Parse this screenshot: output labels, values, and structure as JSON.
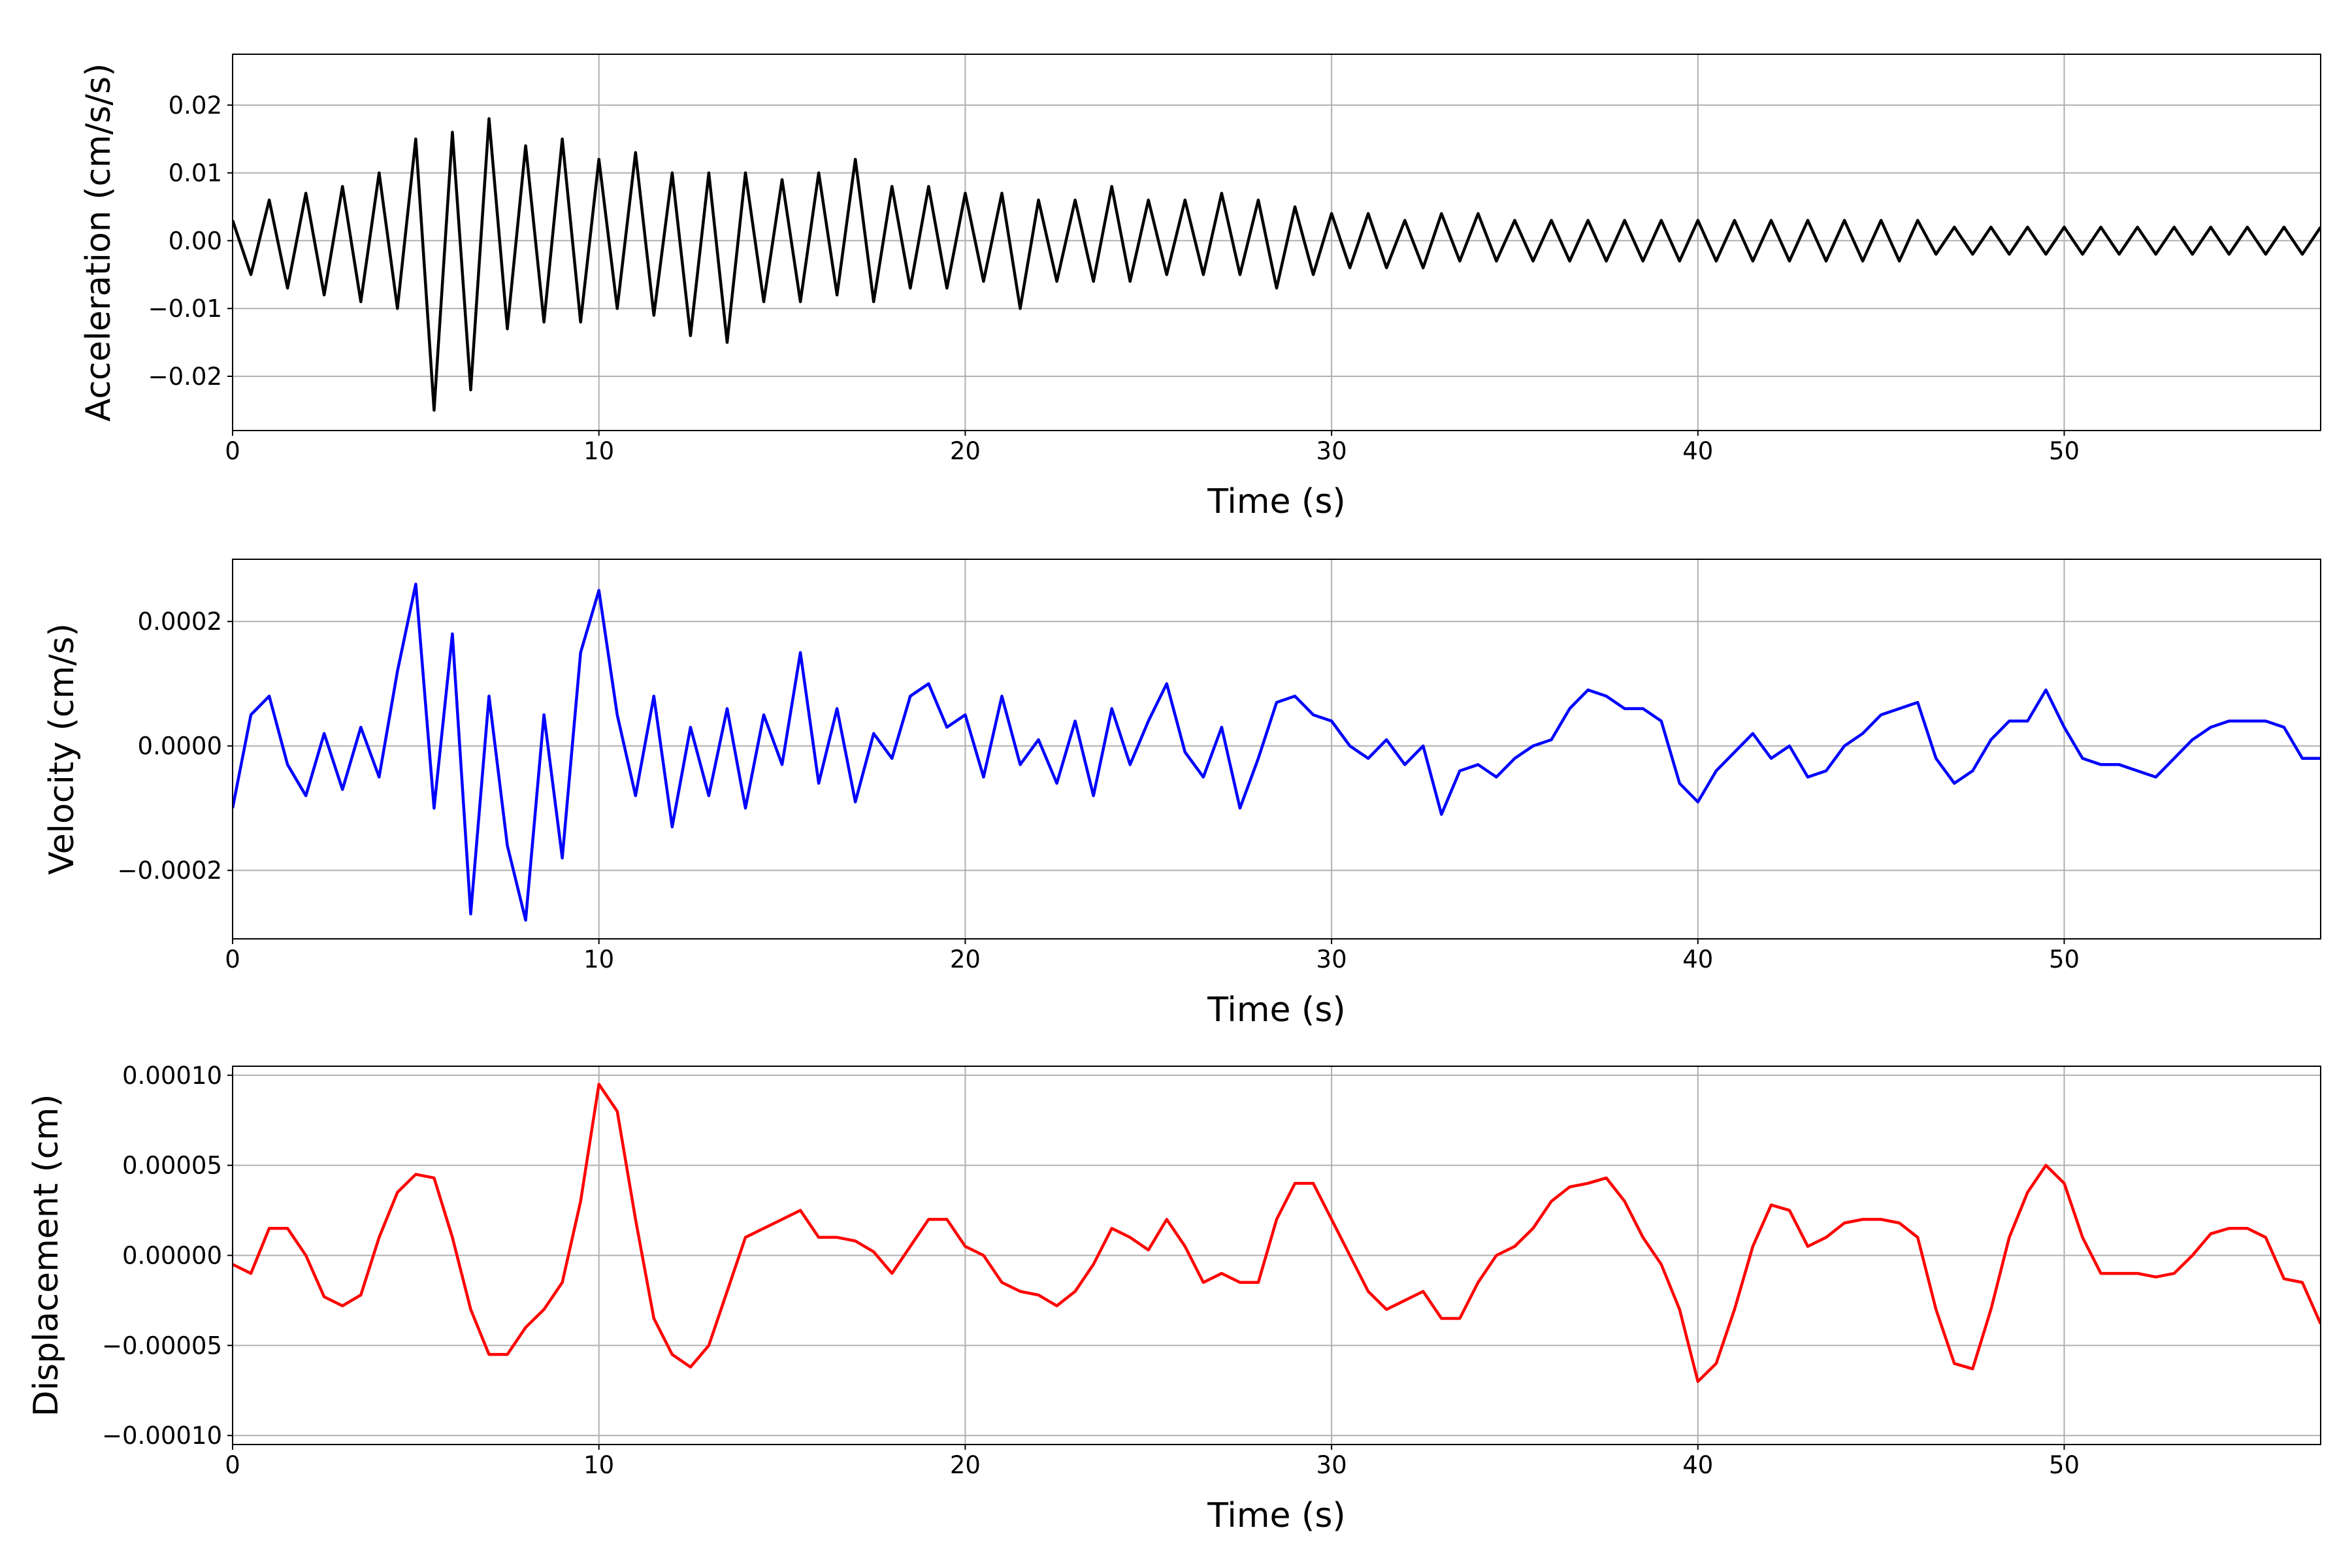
{
  "chart_data": [
    {
      "type": "line",
      "xlabel": "Time (s)",
      "ylabel": "Acceleration (cm/s/s)",
      "color": "#000000",
      "grid": true,
      "xlim": [
        0,
        57
      ],
      "xticks": [
        0,
        10,
        20,
        30,
        40,
        50
      ],
      "ylim": [
        -0.028,
        0.0275
      ],
      "yticks": [
        {
          "value": -0.02,
          "label": "−0.02"
        },
        {
          "value": -0.01,
          "label": "−0.01"
        },
        {
          "value": 0,
          "label": "0.00"
        },
        {
          "value": 0.01,
          "label": "0.01"
        },
        {
          "value": 0.02,
          "label": "0.02"
        }
      ],
      "x": [
        0,
        0.5,
        1,
        1.5,
        2,
        2.5,
        3,
        3.5,
        4,
        4.5,
        5,
        5.5,
        6,
        6.5,
        7,
        7.5,
        8,
        8.5,
        9,
        9.5,
        10,
        10.5,
        11,
        11.5,
        12,
        12.5,
        13,
        13.5,
        14,
        14.5,
        15,
        15.5,
        16,
        16.5,
        17,
        17.5,
        18,
        18.5,
        19,
        19.5,
        20,
        20.5,
        21,
        21.5,
        22,
        22.5,
        23,
        23.5,
        24,
        24.5,
        25,
        25.5,
        26,
        26.5,
        27,
        27.5,
        28,
        28.5,
        29,
        29.5,
        30,
        30.5,
        31,
        31.5,
        32,
        32.5,
        33,
        33.5,
        34,
        34.5,
        35,
        35.5,
        36,
        36.5,
        37,
        37.5,
        38,
        38.5,
        39,
        39.5,
        40,
        40.5,
        41,
        41.5,
        42,
        42.5,
        43,
        43.5,
        44,
        44.5,
        45,
        45.5,
        46,
        46.5,
        47,
        47.5,
        48,
        48.5,
        49,
        49.5,
        50,
        50.5,
        51,
        51.5,
        52,
        52.5,
        53,
        53.5,
        54,
        54.5,
        55,
        55.5,
        56,
        56.5,
        57
      ],
      "values": [
        0.003,
        -0.005,
        0.006,
        -0.007,
        0.007,
        -0.008,
        0.008,
        -0.009,
        0.01,
        -0.01,
        0.015,
        -0.025,
        0.016,
        -0.022,
        0.018,
        -0.013,
        0.014,
        -0.012,
        0.015,
        -0.012,
        0.012,
        -0.01,
        0.013,
        -0.011,
        0.01,
        -0.014,
        0.01,
        -0.015,
        0.01,
        -0.009,
        0.009,
        -0.009,
        0.01,
        -0.008,
        0.012,
        -0.009,
        0.008,
        -0.007,
        0.008,
        -0.007,
        0.007,
        -0.006,
        0.007,
        -0.01,
        0.006,
        -0.006,
        0.006,
        -0.006,
        0.008,
        -0.006,
        0.006,
        -0.005,
        0.006,
        -0.005,
        0.007,
        -0.005,
        0.006,
        -0.007,
        0.005,
        -0.005,
        0.004,
        -0.004,
        0.004,
        -0.004,
        0.003,
        -0.004,
        0.004,
        -0.003,
        0.004,
        -0.003,
        0.003,
        -0.003,
        0.003,
        -0.003,
        0.003,
        -0.003,
        0.003,
        -0.003,
        0.003,
        -0.003,
        0.003,
        -0.003,
        0.003,
        -0.003,
        0.003,
        -0.003,
        0.003,
        -0.003,
        0.003,
        -0.003,
        0.003,
        -0.003,
        0.003,
        -0.002,
        0.002,
        -0.002,
        0.002,
        -0.002,
        0.002,
        -0.002,
        0.002,
        -0.002,
        0.002,
        -0.002,
        0.002,
        -0.002,
        0.002,
        -0.002,
        0.002,
        -0.002,
        0.002,
        -0.002,
        0.002,
        -0.002,
        0.002
      ]
    },
    {
      "type": "line",
      "xlabel": "Time (s)",
      "ylabel": "Velocity (cm/s)",
      "color": "#0000ff",
      "grid": true,
      "xlim": [
        0,
        57
      ],
      "xticks": [
        0,
        10,
        20,
        30,
        40,
        50
      ],
      "ylim": [
        -0.00031,
        0.0003
      ],
      "yticks": [
        {
          "value": -0.0002,
          "label": "−0.0002"
        },
        {
          "value": 0,
          "label": "0.0000"
        },
        {
          "value": 0.0002,
          "label": "0.0002"
        }
      ],
      "x": [
        0,
        0.5,
        1,
        1.5,
        2,
        2.5,
        3,
        3.5,
        4,
        4.5,
        5,
        5.5,
        6,
        6.5,
        7,
        7.5,
        8,
        8.5,
        9,
        9.5,
        10,
        10.5,
        11,
        11.5,
        12,
        12.5,
        13,
        13.5,
        14,
        14.5,
        15,
        15.5,
        16,
        16.5,
        17,
        17.5,
        18,
        18.5,
        19,
        19.5,
        20,
        20.5,
        21,
        21.5,
        22,
        22.5,
        23,
        23.5,
        24,
        24.5,
        25,
        25.5,
        26,
        26.5,
        27,
        27.5,
        28,
        28.5,
        29,
        29.5,
        30,
        30.5,
        31,
        31.5,
        32,
        32.5,
        33,
        33.5,
        34,
        34.5,
        35,
        35.5,
        36,
        36.5,
        37,
        37.5,
        38,
        38.5,
        39,
        39.5,
        40,
        40.5,
        41,
        41.5,
        42,
        42.5,
        43,
        43.5,
        44,
        44.5,
        45,
        45.5,
        46,
        46.5,
        47,
        47.5,
        48,
        48.5,
        49,
        49.5,
        50,
        50.5,
        51,
        51.5,
        52,
        52.5,
        53,
        53.5,
        54,
        54.5,
        55,
        55.5,
        56,
        56.5,
        57
      ],
      "values": [
        -0.0001,
        5e-05,
        8e-05,
        -3e-05,
        -8e-05,
        2e-05,
        -7e-05,
        3e-05,
        -5e-05,
        0.00012,
        0.00026,
        -0.0001,
        0.00018,
        -0.00027,
        8e-05,
        -0.00016,
        -0.00028,
        5e-05,
        -0.00018,
        0.00015,
        0.00025,
        5e-05,
        -8e-05,
        8e-05,
        -0.00013,
        3e-05,
        -8e-05,
        6e-05,
        -0.0001,
        5e-05,
        -3e-05,
        0.00015,
        -6e-05,
        6e-05,
        -9e-05,
        2e-05,
        -2e-05,
        8e-05,
        0.0001,
        3e-05,
        5e-05,
        -5e-05,
        8e-05,
        -3e-05,
        1e-05,
        -6e-05,
        4e-05,
        -8e-05,
        6e-05,
        -3e-05,
        4e-05,
        0.0001,
        -1e-05,
        -5e-05,
        3e-05,
        -0.0001,
        -2e-05,
        7e-05,
        8e-05,
        5e-05,
        4e-05,
        0,
        -2e-05,
        1e-05,
        -3e-05,
        0,
        -0.00011,
        -4e-05,
        -3e-05,
        -5e-05,
        -2e-05,
        0,
        1e-05,
        6e-05,
        9e-05,
        8e-05,
        6e-05,
        6e-05,
        4e-05,
        -6e-05,
        -9e-05,
        -4e-05,
        -1e-05,
        2e-05,
        -2e-05,
        0,
        -5e-05,
        -4e-05,
        0,
        2e-05,
        5e-05,
        6e-05,
        7e-05,
        -2e-05,
        -6e-05,
        -4e-05,
        1e-05,
        4e-05,
        4e-05,
        9e-05,
        3e-05,
        -2e-05,
        -3e-05,
        -3e-05,
        -4e-05,
        -5e-05,
        -2e-05,
        1e-05,
        3e-05,
        4e-05,
        4e-05,
        4e-05,
        3e-05,
        -2e-05,
        -2e-05
      ]
    },
    {
      "type": "line",
      "xlabel": "Time (s)",
      "ylabel": "Displacement (cm)",
      "color": "#ff0000",
      "grid": true,
      "xlim": [
        0,
        57
      ],
      "xticks": [
        0,
        10,
        20,
        30,
        40,
        50
      ],
      "ylim": [
        -0.000105,
        0.000105
      ],
      "yticks": [
        {
          "value": -0.0001,
          "label": "−0.00010"
        },
        {
          "value": -5e-05,
          "label": "−0.00005"
        },
        {
          "value": 0,
          "label": "0.00000"
        },
        {
          "value": 5e-05,
          "label": "0.00005"
        },
        {
          "value": 0.0001,
          "label": "0.00010"
        }
      ],
      "x": [
        0,
        0.5,
        1,
        1.5,
        2,
        2.5,
        3,
        3.5,
        4,
        4.5,
        5,
        5.5,
        6,
        6.5,
        7,
        7.5,
        8,
        8.5,
        9,
        9.5,
        10,
        10.5,
        11,
        11.5,
        12,
        12.5,
        13,
        13.5,
        14,
        14.5,
        15,
        15.5,
        16,
        16.5,
        17,
        17.5,
        18,
        18.5,
        19,
        19.5,
        20,
        20.5,
        21,
        21.5,
        22,
        22.5,
        23,
        23.5,
        24,
        24.5,
        25,
        25.5,
        26,
        26.5,
        27,
        27.5,
        28,
        28.5,
        29,
        29.5,
        30,
        30.5,
        31,
        31.5,
        32,
        32.5,
        33,
        33.5,
        34,
        34.5,
        35,
        35.5,
        36,
        36.5,
        37,
        37.5,
        38,
        38.5,
        39,
        39.5,
        40,
        40.5,
        41,
        41.5,
        42,
        42.5,
        43,
        43.5,
        44,
        44.5,
        45,
        45.5,
        46,
        46.5,
        47,
        47.5,
        48,
        48.5,
        49,
        49.5,
        50,
        50.5,
        51,
        51.5,
        52,
        52.5,
        53,
        53.5,
        54,
        54.5,
        55,
        55.5,
        56,
        56.5,
        57
      ],
      "values": [
        -5e-06,
        -1e-05,
        1.5e-05,
        1.5e-05,
        0,
        -2.3e-05,
        -2.8e-05,
        -2.2e-05,
        1e-05,
        3.5e-05,
        4.5e-05,
        4.3e-05,
        1e-05,
        -3e-05,
        -5.5e-05,
        -5.5e-05,
        -4e-05,
        -3e-05,
        -1.5e-05,
        3e-05,
        9.5e-05,
        8e-05,
        2e-05,
        -3.5e-05,
        -5.5e-05,
        -6.2e-05,
        -5e-05,
        -2e-05,
        1e-05,
        1.5e-05,
        2e-05,
        2.5e-05,
        1e-05,
        1e-05,
        8e-06,
        2e-06,
        -1e-05,
        5e-06,
        2e-05,
        2e-05,
        5e-06,
        0,
        -1.5e-05,
        -2e-05,
        -2.2e-05,
        -2.8e-05,
        -2e-05,
        -5e-06,
        1.5e-05,
        1e-05,
        3e-06,
        2e-05,
        5e-06,
        -1.5e-05,
        -1e-05,
        -1.5e-05,
        -1.5e-05,
        2e-05,
        4e-05,
        4e-05,
        2e-05,
        0,
        -2e-05,
        -3e-05,
        -2.5e-05,
        -2e-05,
        -3.5e-05,
        -3.5e-05,
        -1.5e-05,
        0,
        5e-06,
        1.5e-05,
        3e-05,
        3.8e-05,
        4e-05,
        4.3e-05,
        3e-05,
        1e-05,
        -5e-06,
        -3e-05,
        -7e-05,
        -6e-05,
        -3e-05,
        5e-06,
        2.8e-05,
        2.5e-05,
        5e-06,
        1e-05,
        1.8e-05,
        2e-05,
        2e-05,
        1.8e-05,
        1e-05,
        -3e-05,
        -6e-05,
        -6.3e-05,
        -3e-05,
        1e-05,
        3.5e-05,
        5e-05,
        4e-05,
        1e-05,
        -1e-05,
        -1e-05,
        -1e-05,
        -1.2e-05,
        -1e-05,
        0,
        1.2e-05,
        1.5e-05,
        1.5e-05,
        1e-05,
        -1.3e-05,
        -1.5e-05,
        -3.8e-05
      ]
    }
  ]
}
